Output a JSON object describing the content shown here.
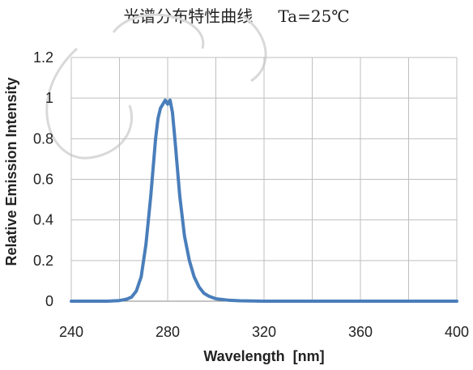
{
  "chart_data": {
    "type": "line",
    "title": "光谱分布特性曲线",
    "subtitle": "Ta=25℃",
    "xlabel": "Wavelength  [nm]",
    "ylabel": "Relative Emission Intensity",
    "xlim": [
      240,
      400
    ],
    "ylim": [
      0,
      1.2
    ],
    "xticks": [
      "240",
      "280",
      "320",
      "360",
      "400"
    ],
    "yticks": [
      "0",
      "0.2",
      "0.4",
      "0.6",
      "0.8",
      "1",
      "1.2"
    ],
    "grid": true,
    "legend": "none",
    "series": [
      {
        "color": "#4a7ebb",
        "x": [
          240,
          255,
          260,
          263,
          265,
          267,
          269,
          271,
          273,
          275,
          276,
          277,
          278,
          279,
          280,
          281,
          282,
          283,
          284,
          285,
          287,
          289,
          291,
          293,
          295,
          297,
          300,
          305,
          310,
          320,
          340,
          360,
          380,
          400
        ],
        "y": [
          0,
          0,
          0.003,
          0.01,
          0.02,
          0.05,
          0.12,
          0.28,
          0.52,
          0.8,
          0.9,
          0.95,
          0.97,
          0.99,
          0.97,
          0.99,
          0.93,
          0.8,
          0.66,
          0.52,
          0.32,
          0.2,
          0.12,
          0.07,
          0.04,
          0.025,
          0.012,
          0.005,
          0.002,
          0,
          0,
          0,
          0,
          0
        ]
      }
    ]
  }
}
